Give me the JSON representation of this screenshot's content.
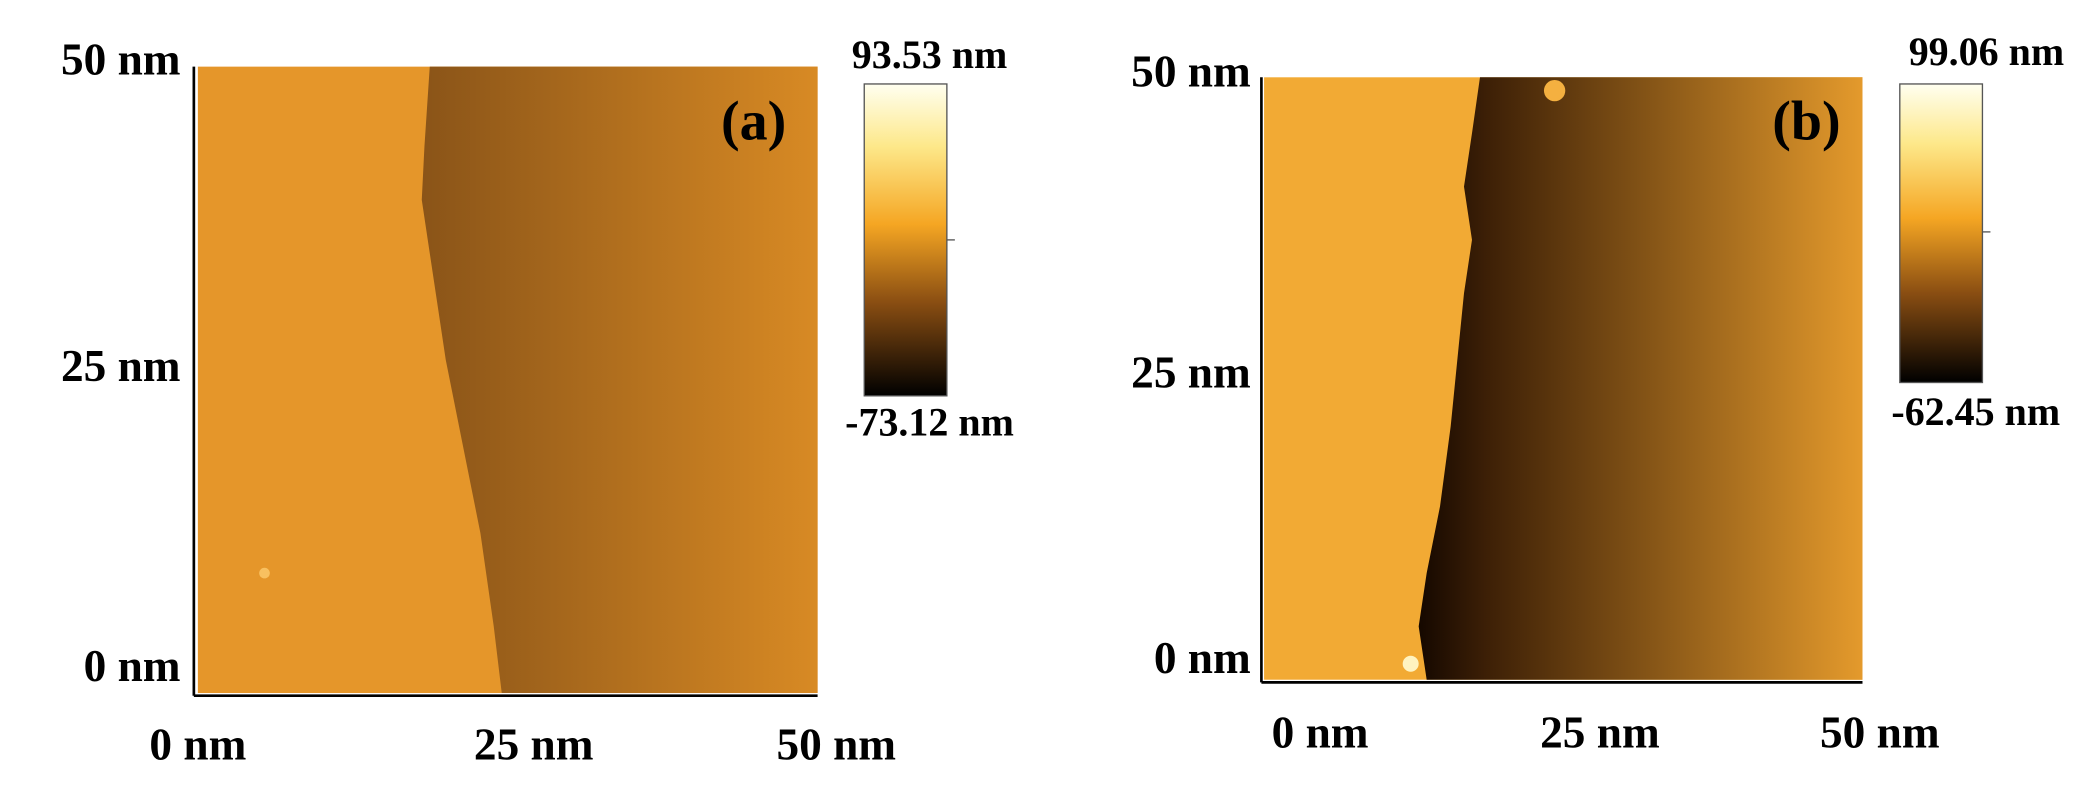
{
  "panels": [
    {
      "label": "(a)",
      "x_ticks": [
        "0 nm",
        "25 nm",
        "50 nm"
      ],
      "y_ticks": [
        "0 nm",
        "25 nm",
        "50 nm"
      ],
      "colorbar": {
        "max": "93.53 nm",
        "min": "-73.12 nm"
      }
    },
    {
      "label": "(b)",
      "x_ticks": [
        "0 nm",
        "25 nm",
        "50 nm"
      ],
      "y_ticks": [
        "0 nm",
        "25 nm",
        "50 nm"
      ],
      "colorbar": {
        "max": "99.06 nm",
        "min": "-62.45 nm"
      }
    }
  ]
}
